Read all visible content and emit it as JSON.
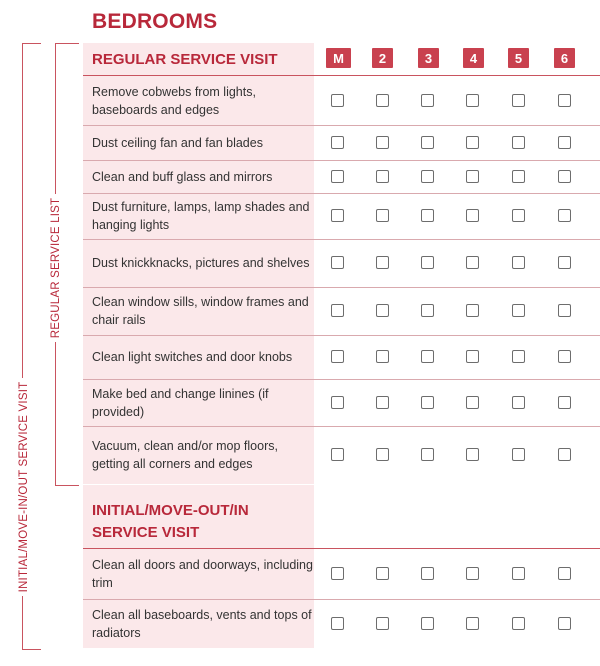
{
  "title": "BEDROOMS",
  "side_labels": {
    "outer": "INITIAL/MOVE-IN/OUT SERVICE VISIT",
    "inner": "REGULAR SERVICE LIST"
  },
  "columns": [
    "M",
    "2",
    "3",
    "4",
    "5",
    "6"
  ],
  "regular": {
    "heading": "REGULAR SERVICE VISIT",
    "items": [
      "Remove cobwebs from lights, baseboards and edges",
      "Dust ceiling fan and fan blades",
      "Clean and buff glass and mirrors",
      "Dust furniture, lamps, lamp shades and hanging lights",
      "Dust knickknacks, pictures and shelves",
      "Clean window sills, window frames and chair rails",
      "Clean light switches and door knobs",
      "Make bed and change linines (if provided)",
      "Vacuum, clean and/or mop floors, getting all corners and edges"
    ]
  },
  "initial": {
    "heading_line1": "INITIAL/MOVE-OUT/IN",
    "heading_line2": "SERVICE VISIT",
    "items": [
      "Clean all doors and doorways, including trim",
      "Clean all baseboards, vents and tops of radiators"
    ]
  },
  "colors": {
    "accent": "#b8283a",
    "panel": "#fbe8ea",
    "header_box": "#c9414f"
  }
}
